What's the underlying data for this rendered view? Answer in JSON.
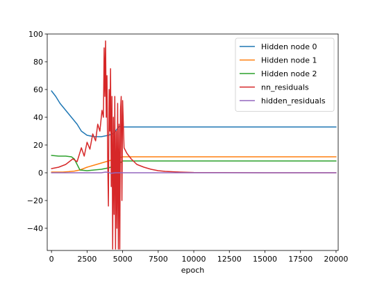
{
  "chart_data": {
    "type": "line",
    "title": "",
    "xlabel": "epoch",
    "ylabel": "",
    "xlim": [
      -300,
      20150
    ],
    "ylim": [
      -56,
      100
    ],
    "xticks": [
      0,
      2500,
      5000,
      7500,
      10000,
      12500,
      15000,
      17500,
      20000
    ],
    "xtick_labels": [
      "0",
      "2500",
      "5000",
      "7500",
      "10000",
      "12500",
      "15000",
      "17500",
      "20000"
    ],
    "yticks": [
      -40,
      -20,
      0,
      20,
      40,
      60,
      80,
      100
    ],
    "ytick_labels": [
      "−40",
      "−20",
      "0",
      "20",
      "40",
      "60",
      "80",
      "100"
    ],
    "grid": false,
    "legend_position": "top-right",
    "series": [
      {
        "name": "Hidden node 0",
        "color": "#1f77b4",
        "x": [
          0,
          300,
          600,
          1000,
          1400,
          1800,
          2100,
          2500,
          3000,
          3500,
          4000,
          4300,
          4500,
          4700,
          4900,
          5000,
          6000,
          10000,
          15000,
          20000
        ],
        "y": [
          59,
          55,
          50,
          45,
          40,
          35,
          30,
          27,
          26,
          26,
          27,
          28,
          30,
          33,
          33.5,
          33,
          33,
          33,
          33,
          33
        ]
      },
      {
        "name": "Hidden node 1",
        "color": "#ff7f0e",
        "x": [
          0,
          800,
          1200,
          1600,
          2000,
          2500,
          3000,
          3500,
          4000,
          4500,
          4800,
          5000,
          6000,
          10000,
          15000,
          20000
        ],
        "y": [
          0.5,
          0.5,
          0.8,
          1.2,
          2,
          4,
          5.5,
          7,
          8.5,
          10,
          11,
          11.5,
          11.5,
          11.5,
          11.5,
          11.5
        ]
      },
      {
        "name": "Hidden node 2",
        "color": "#2ca02c",
        "x": [
          0,
          500,
          1000,
          1400,
          1600,
          1800,
          2000,
          2500,
          3000,
          3500,
          4000,
          4500,
          4800,
          5000,
          6000,
          10000,
          15000,
          20000
        ],
        "y": [
          12.5,
          12,
          12,
          11.5,
          10,
          6,
          2,
          1.5,
          2,
          2.5,
          3.5,
          5,
          7,
          8.5,
          8.5,
          8.5,
          8.5,
          8.5
        ]
      },
      {
        "name": "nn_residuals",
        "color": "#d62728",
        "x": [
          0,
          500,
          1000,
          1500,
          1800,
          2100,
          2300,
          2500,
          2700,
          2900,
          3100,
          3250,
          3400,
          3550,
          3650,
          3700,
          3750,
          3800,
          3850,
          3900,
          3950,
          4000,
          4050,
          4100,
          4150,
          4200,
          4250,
          4300,
          4350,
          4400,
          4450,
          4500,
          4550,
          4600,
          4650,
          4700,
          4750,
          4800,
          4850,
          4900,
          4950,
          5000,
          5100,
          5300,
          5600,
          6000,
          6500,
          7000,
          7500,
          8000,
          9000,
          10000,
          12000,
          15000,
          20000
        ],
        "y": [
          3,
          4,
          6,
          10,
          8,
          18,
          12,
          22,
          17,
          28,
          23,
          35,
          30,
          45,
          40,
          90,
          55,
          95,
          40,
          70,
          10,
          -24,
          60,
          30,
          75,
          -10,
          55,
          -55,
          40,
          -30,
          55,
          -55,
          30,
          -40,
          50,
          -55,
          35,
          -55,
          45,
          55,
          -20,
          52,
          18,
          14,
          10,
          6,
          4,
          2.5,
          1.5,
          1,
          0.5,
          0.2,
          0.1,
          0,
          0
        ]
      },
      {
        "name": "hidden_residuals",
        "color": "#9467bd",
        "x": [
          0,
          1000,
          2000,
          3000,
          3500,
          3800,
          4000,
          4200,
          4500,
          5000,
          10000,
          15000,
          20000
        ],
        "y": [
          0,
          0,
          0,
          0,
          0,
          0.5,
          0.3,
          -0.4,
          0,
          0,
          0,
          0,
          0
        ]
      }
    ]
  }
}
